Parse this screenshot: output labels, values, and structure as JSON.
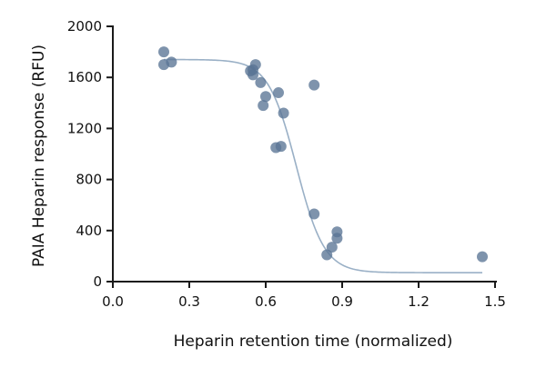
{
  "colors": {
    "axis": "#1a1a1a",
    "point": "#5a7595",
    "curve": "#9ab0c6",
    "text": "#111111",
    "background": "#ffffff"
  },
  "chart_data": {
    "type": "scatter",
    "title": "",
    "xlabel": "Heparin retention time (normalized)",
    "ylabel": "PAIA Heparin response (RFU)",
    "xlim": [
      0.0,
      1.5
    ],
    "ylim": [
      0,
      2000
    ],
    "x_ticks": [
      0.0,
      0.3,
      0.6,
      0.9,
      1.2,
      1.5
    ],
    "x_tick_labels": [
      "0.0",
      "0.3",
      "0.6",
      "0.9",
      "1.2",
      "1.5"
    ],
    "y_ticks": [
      0,
      400,
      800,
      1200,
      1600,
      2000
    ],
    "y_tick_labels": [
      "0",
      "400",
      "800",
      "1200",
      "1600",
      "2000"
    ],
    "grid": false,
    "legend": "none",
    "series": [
      {
        "points": [
          {
            "x": 0.2,
            "y": 1800
          },
          {
            "x": 0.2,
            "y": 1700
          },
          {
            "x": 0.23,
            "y": 1720
          },
          {
            "x": 0.54,
            "y": 1650
          },
          {
            "x": 0.55,
            "y": 1620
          },
          {
            "x": 0.55,
            "y": 1660
          },
          {
            "x": 0.56,
            "y": 1700
          },
          {
            "x": 0.58,
            "y": 1560
          },
          {
            "x": 0.59,
            "y": 1380
          },
          {
            "x": 0.6,
            "y": 1450
          },
          {
            "x": 0.64,
            "y": 1050
          },
          {
            "x": 0.65,
            "y": 1480
          },
          {
            "x": 0.66,
            "y": 1060
          },
          {
            "x": 0.67,
            "y": 1320
          },
          {
            "x": 0.79,
            "y": 1540
          },
          {
            "x": 0.79,
            "y": 530
          },
          {
            "x": 0.84,
            "y": 210
          },
          {
            "x": 0.86,
            "y": 270
          },
          {
            "x": 0.88,
            "y": 390
          },
          {
            "x": 0.88,
            "y": 340
          },
          {
            "x": 1.45,
            "y": 195
          }
        ]
      }
    ],
    "fit_curve": {
      "model": "four-parameter logistic",
      "top": 1740,
      "bottom": 70,
      "midpoint": 0.72,
      "slope": 0.055,
      "x_range": [
        0.2,
        1.45
      ]
    }
  }
}
